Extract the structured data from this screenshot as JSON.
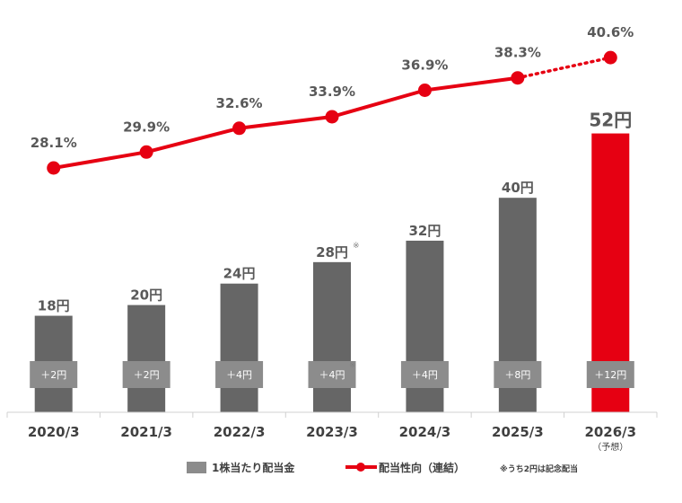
{
  "chart_data": {
    "type": "bar",
    "categories": [
      "2020/3",
      "2021/3",
      "2022/3",
      "2023/3",
      "2024/3",
      "2025/3",
      "2026/3"
    ],
    "forecast_label": "（予想）",
    "series": [
      {
        "name": "1株当たり配当金",
        "values": [
          18,
          20,
          24,
          28,
          32,
          40,
          52
        ],
        "labels": [
          "18円",
          "20円",
          "24円",
          "28円",
          "32円",
          "40円",
          "52円"
        ],
        "increase_labels": [
          "＋2円",
          "＋2円",
          "＋4円",
          "＋4円",
          "＋4円",
          "＋8円",
          "＋12円"
        ],
        "color": "#666666",
        "forecast_color": "#e60012",
        "increase_box_color": "#8c8c8c"
      },
      {
        "name": "配当性向（連結）",
        "type": "line",
        "values": [
          28.1,
          29.9,
          32.6,
          33.9,
          36.9,
          38.3,
          40.6
        ],
        "labels": [
          "28.1%",
          "29.9%",
          "32.6%",
          "33.9%",
          "36.9%",
          "38.3%",
          "40.6%"
        ],
        "color": "#e60012",
        "forecast_dotted": true
      }
    ],
    "annotation_mark": "※",
    "annotation_mark_index": 3,
    "footnote": "※うち2円は記念配当",
    "legend_position": "bottom",
    "grid": false
  }
}
